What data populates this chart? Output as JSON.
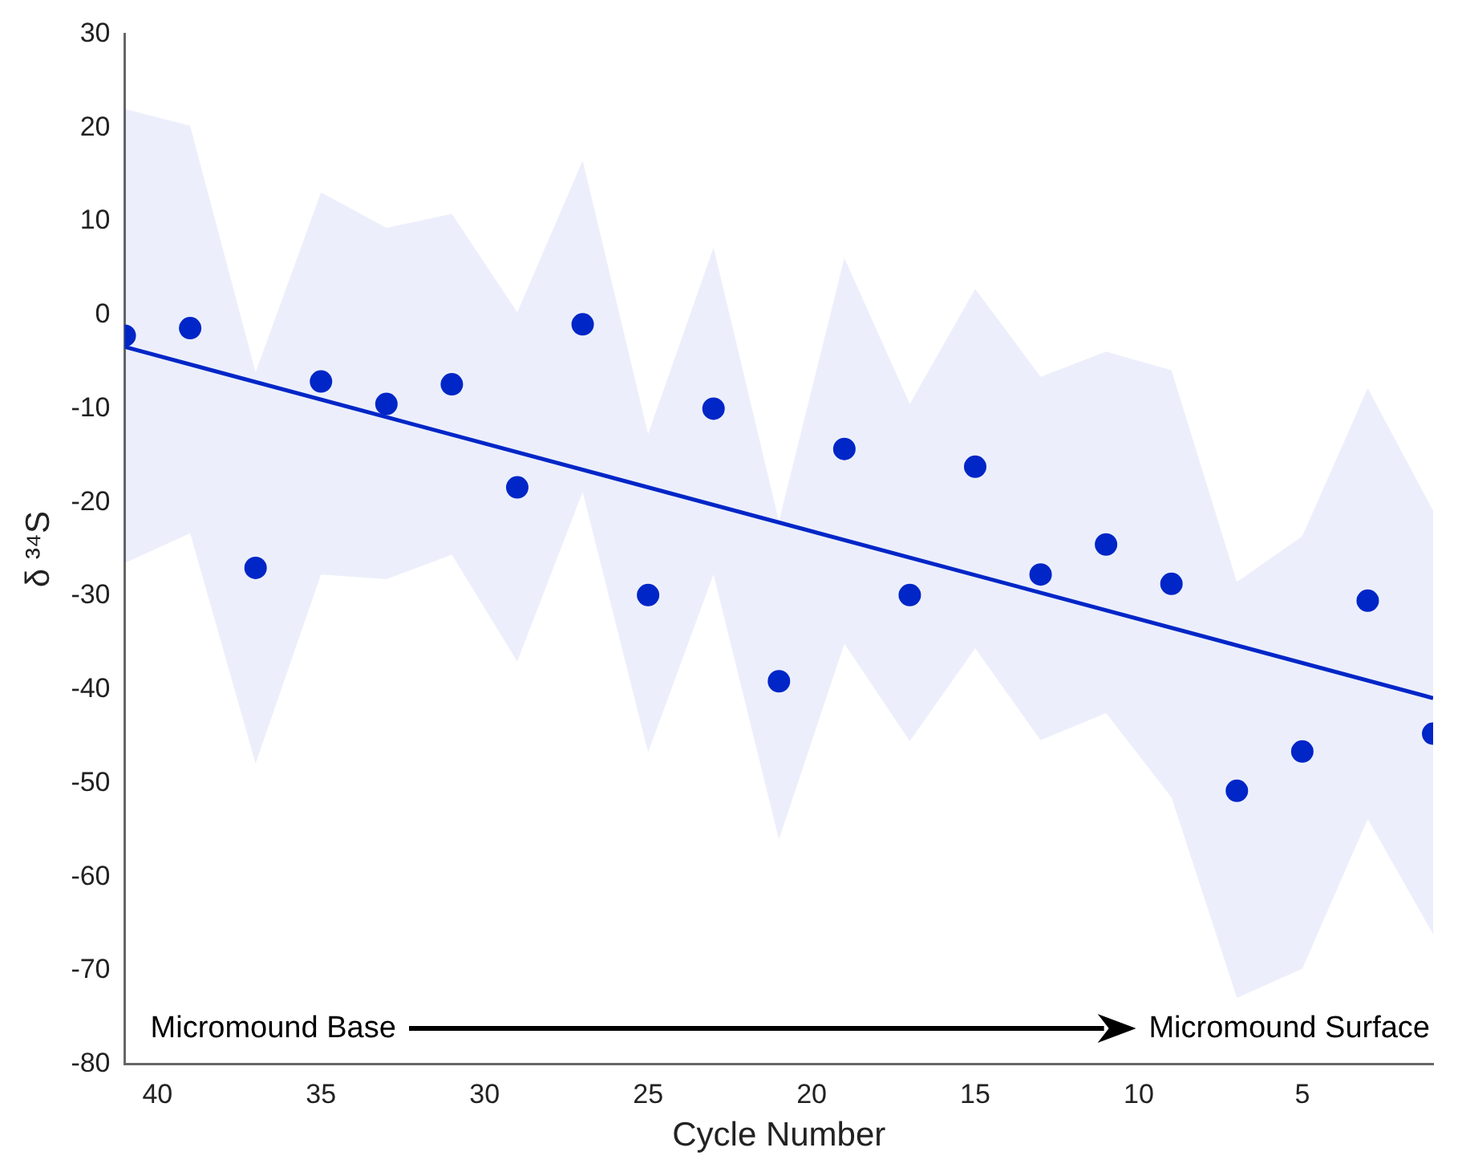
{
  "chart_data": {
    "type": "scatter",
    "xlabel": "Cycle Number",
    "ylabel": "δ ³⁴S",
    "x": [
      41,
      39,
      37,
      35,
      33,
      31,
      29,
      27,
      25,
      23,
      21,
      19,
      17,
      15,
      13,
      11,
      9,
      7,
      5,
      3,
      1
    ],
    "xlim": [
      41,
      1
    ],
    "xticks": [
      40,
      35,
      30,
      25,
      20,
      15,
      10,
      5
    ],
    "ylim": [
      -80,
      30
    ],
    "yticks": [
      -80,
      -70,
      -60,
      -50,
      -40,
      -30,
      -20,
      -10,
      0,
      10,
      20,
      30
    ],
    "grid": false,
    "legend": false,
    "series": [
      {
        "marker": "circle",
        "color": "#0026c8",
        "values": [
          -2.2,
          -1.4,
          -27,
          -7.1,
          -9.5,
          -7.4,
          -18.4,
          -1,
          -29.9,
          -10,
          -39.1,
          -14.3,
          -29.9,
          -16.2,
          -27.7,
          -24.5,
          -28.7,
          -50.8,
          -46.6,
          -30.5,
          -44.7
        ],
        "upper": [
          22,
          20.2,
          -6.1,
          13.1,
          9.3,
          10.8,
          0.3,
          16.5,
          -12.7,
          7.2,
          -22,
          6.1,
          -9.5,
          2.8,
          -6.6,
          -3.9,
          -5.9,
          -28.5,
          -23.6,
          -7.8,
          -20.9
        ],
        "lower": [
          -26.5,
          -23.3,
          -47.9,
          -27.7,
          -28.2,
          -25.6,
          -37,
          -18.9,
          -46.7,
          -27.7,
          -56,
          -35.1,
          -45.5,
          -35.6,
          -45.4,
          -42.5,
          -51.5,
          -72.9,
          -69.8,
          -53.8,
          -66.1
        ]
      },
      {
        "type": "line",
        "x": [
          41,
          1
        ],
        "values": [
          -3.4,
          -40.9
        ],
        "color": "#0026c8"
      }
    ],
    "annotations": [
      "Micromound Base",
      "Micromound Surface"
    ]
  }
}
